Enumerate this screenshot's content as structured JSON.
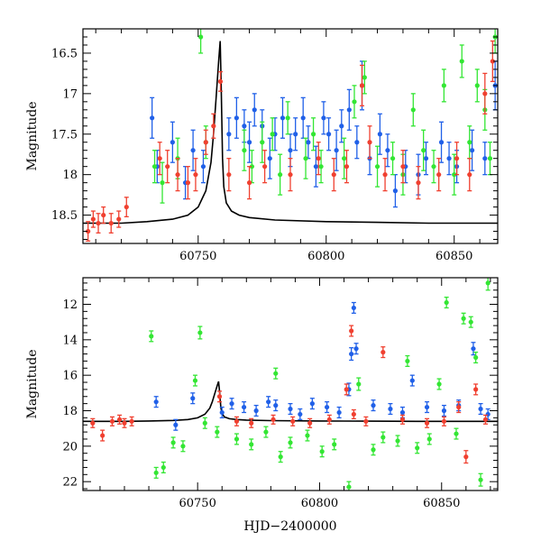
{
  "chart_data": [
    {
      "type": "scatter",
      "panel": "top",
      "ylabel": "Magnitude",
      "xlabel": "",
      "xlim": [
        60705,
        60867
      ],
      "ylim": [
        18.85,
        16.2
      ],
      "y_inverted": true,
      "xticks": [
        60750,
        60800,
        60850
      ],
      "xtick_labels": [
        "60750",
        "60800",
        "60850"
      ],
      "yticks": [
        16.5,
        17,
        17.5,
        18,
        18.5
      ],
      "ytick_labels": [
        "16.5",
        "17",
        "17.5",
        "18",
        "18.5"
      ],
      "model_line": {
        "color": "#000000",
        "x": [
          60705,
          60720,
          60730,
          60740,
          60746,
          60750,
          60753,
          60755,
          60756,
          60757,
          60758,
          60758.6,
          60759,
          60759.5,
          60760,
          60761,
          60763,
          60766,
          60770,
          60780,
          60800,
          60820,
          60840,
          60860,
          60867
        ],
        "y": [
          18.6,
          18.6,
          18.58,
          18.55,
          18.5,
          18.4,
          18.2,
          17.85,
          17.5,
          17.05,
          16.6,
          16.35,
          16.9,
          17.8,
          18.15,
          18.35,
          18.45,
          18.5,
          18.53,
          18.56,
          18.58,
          18.59,
          18.6,
          18.6,
          18.6
        ]
      },
      "series": [
        {
          "name": "",
          "color": "#2060e8",
          "x": [
            60732,
            60734,
            60740,
            60745,
            60748,
            60752,
            60762,
            60765,
            60768,
            60770,
            60772,
            60775,
            60778,
            60780,
            60783,
            60786,
            60788,
            60791,
            60793,
            60796,
            60799,
            60801,
            60804,
            60806,
            60809,
            60812,
            60814,
            60817,
            60821,
            60824,
            60827,
            60831,
            60836,
            60839,
            60845,
            60848,
            60851,
            60857,
            60862,
            60866
          ],
          "y": [
            17.3,
            17.9,
            17.6,
            18.1,
            17.7,
            17.9,
            17.5,
            17.3,
            17.4,
            17.6,
            17.2,
            17.4,
            17.8,
            17.5,
            17.3,
            17.7,
            17.5,
            17.3,
            17.6,
            17.9,
            17.3,
            17.5,
            17.7,
            17.4,
            17.2,
            17.6,
            16.9,
            17.8,
            17.5,
            17.7,
            18.2,
            17.9,
            18.0,
            17.8,
            17.6,
            17.8,
            17.9,
            17.7,
            17.8,
            16.9
          ],
          "err": [
            0.25,
            0.2,
            0.25,
            0.2,
            0.25,
            0.2,
            0.2,
            0.25,
            0.2,
            0.25,
            0.2,
            0.2,
            0.25,
            0.2,
            0.25,
            0.2,
            0.2,
            0.25,
            0.2,
            0.25,
            0.2,
            0.2,
            0.25,
            0.2,
            0.25,
            0.2,
            0.3,
            0.2,
            0.25,
            0.2,
            0.2,
            0.2,
            0.25,
            0.2,
            0.25,
            0.2,
            0.2,
            0.25,
            0.2,
            0.3
          ]
        },
        {
          "name": "",
          "color": "#33e633",
          "x": [
            60733,
            60736,
            60742,
            60751,
            60753,
            60768,
            60771,
            60775,
            60779,
            60782,
            60785,
            60792,
            60795,
            60798,
            60807,
            60811,
            60815,
            60820,
            60826,
            60830,
            60834,
            60838,
            60842,
            60846,
            60850,
            60853,
            60856,
            60859,
            60862,
            60864,
            60866
          ],
          "y": [
            17.9,
            18.1,
            17.8,
            16.3,
            17.6,
            17.7,
            17.9,
            17.6,
            17.5,
            18.0,
            17.3,
            17.8,
            17.5,
            17.9,
            17.8,
            17.1,
            16.8,
            17.9,
            17.8,
            18.0,
            17.2,
            17.7,
            17.9,
            16.9,
            18.0,
            16.6,
            17.6,
            16.9,
            17.2,
            17.8,
            16.3
          ],
          "err": [
            0.2,
            0.25,
            0.25,
            0.2,
            0.2,
            0.25,
            0.2,
            0.25,
            0.2,
            0.25,
            0.2,
            0.25,
            0.2,
            0.2,
            0.25,
            0.2,
            0.2,
            0.25,
            0.2,
            0.25,
            0.2,
            0.25,
            0.2,
            0.2,
            0.25,
            0.2,
            0.2,
            0.2,
            0.25,
            0.2,
            0.2
          ]
        },
        {
          "name": "",
          "color": "#f04030",
          "x": [
            60707,
            60709,
            60711,
            60713,
            60716,
            60719,
            60722,
            60735,
            60738,
            60742,
            60746,
            60749,
            60753,
            60756,
            60758.7,
            60762,
            60770,
            60776,
            60786,
            60797,
            60803,
            60808,
            60814,
            60817,
            60823,
            60830,
            60836,
            60844,
            60851,
            60856,
            60862,
            60865
          ],
          "y": [
            18.7,
            18.55,
            18.6,
            18.5,
            18.6,
            18.55,
            18.4,
            17.8,
            17.9,
            18.0,
            18.1,
            18.0,
            17.6,
            17.4,
            16.85,
            18.0,
            18.1,
            17.9,
            18.0,
            17.8,
            18.0,
            17.9,
            16.9,
            17.6,
            18.0,
            17.9,
            18.1,
            18.0,
            17.8,
            18.0,
            17.0,
            16.6
          ],
          "err": [
            0.12,
            0.1,
            0.12,
            0.1,
            0.12,
            0.1,
            0.12,
            0.2,
            0.2,
            0.2,
            0.2,
            0.2,
            0.15,
            0.15,
            0.12,
            0.2,
            0.2,
            0.2,
            0.2,
            0.2,
            0.2,
            0.2,
            0.25,
            0.2,
            0.2,
            0.2,
            0.2,
            0.2,
            0.2,
            0.2,
            0.25,
            0.25
          ]
        }
      ]
    },
    {
      "type": "scatter",
      "panel": "bottom",
      "ylabel": "Magnitude",
      "xlabel": "HJD−2400000",
      "xlim": [
        60703,
        60873
      ],
      "ylim": [
        22.5,
        10.5
      ],
      "y_inverted": true,
      "xticks": [
        60750,
        60800,
        60850
      ],
      "xtick_labels": [
        "60750",
        "60800",
        "60850"
      ],
      "yticks": [
        12,
        14,
        16,
        18,
        20,
        22
      ],
      "ytick_labels": [
        "12",
        "14",
        "16",
        "18",
        "20",
        "22"
      ],
      "model_line": {
        "color": "#000000",
        "x": [
          60703,
          60720,
          60730,
          60740,
          60746,
          60750,
          60753,
          60755,
          60756,
          60757,
          60758,
          60758.6,
          60759,
          60759.5,
          60760,
          60761,
          60763,
          60766,
          60770,
          60780,
          60800,
          60820,
          60840,
          60860,
          60873
        ],
        "y": [
          18.6,
          18.6,
          18.58,
          18.55,
          18.5,
          18.4,
          18.2,
          17.85,
          17.5,
          17.05,
          16.6,
          16.35,
          16.9,
          17.8,
          18.15,
          18.35,
          18.45,
          18.5,
          18.53,
          18.56,
          18.58,
          18.59,
          18.6,
          18.6,
          18.6
        ]
      },
      "series": [
        {
          "name": "",
          "color": "#2060e8",
          "x": [
            60733,
            60741,
            60748,
            60760,
            60764,
            60769,
            60774,
            60779,
            60782,
            60788,
            60792,
            60797,
            60803,
            60808,
            60812,
            60813,
            60814,
            60815,
            60822,
            60829,
            60834,
            60838,
            60844,
            60851,
            60857,
            60863,
            60866,
            60869
          ],
          "y": [
            17.5,
            18.8,
            17.3,
            18.1,
            17.6,
            17.8,
            18.0,
            17.5,
            17.7,
            17.9,
            18.2,
            17.6,
            17.8,
            18.1,
            16.8,
            14.8,
            12.2,
            14.5,
            17.7,
            17.9,
            18.1,
            16.3,
            17.8,
            18.0,
            17.7,
            14.5,
            17.9,
            18.2
          ],
          "err": [
            0.3,
            0.3,
            0.3,
            0.3,
            0.3,
            0.3,
            0.3,
            0.3,
            0.3,
            0.3,
            0.3,
            0.3,
            0.3,
            0.3,
            0.35,
            0.35,
            0.3,
            0.3,
            0.3,
            0.3,
            0.3,
            0.3,
            0.3,
            0.3,
            0.3,
            0.35,
            0.3,
            0.3
          ]
        },
        {
          "name": "",
          "color": "#33e633",
          "x": [
            60731,
            60733,
            60736,
            60740,
            60744,
            60749,
            60751,
            60753,
            60758,
            60766,
            60772,
            60778,
            60782,
            60784,
            60788,
            60795,
            60801,
            60806,
            60812,
            60816,
            60822,
            60826,
            60832,
            60836,
            60840,
            60845,
            60849,
            60852,
            60856,
            60859,
            60862,
            60864,
            60866,
            60869
          ],
          "y": [
            13.8,
            21.5,
            21.2,
            19.8,
            20.0,
            16.3,
            13.6,
            18.7,
            19.2,
            19.6,
            19.9,
            19.2,
            15.9,
            20.6,
            19.8,
            19.4,
            20.3,
            19.9,
            22.3,
            16.5,
            20.2,
            19.5,
            19.7,
            15.2,
            20.1,
            19.6,
            16.5,
            11.9,
            19.3,
            12.8,
            13.0,
            15.0,
            21.9,
            10.8
          ],
          "err": [
            0.3,
            0.3,
            0.3,
            0.3,
            0.3,
            0.3,
            0.35,
            0.3,
            0.3,
            0.3,
            0.3,
            0.3,
            0.3,
            0.3,
            0.3,
            0.3,
            0.3,
            0.3,
            0.3,
            0.35,
            0.3,
            0.3,
            0.3,
            0.3,
            0.3,
            0.3,
            0.3,
            0.3,
            0.3,
            0.3,
            0.3,
            0.3,
            0.35,
            0.4
          ]
        },
        {
          "name": "",
          "color": "#f04030",
          "x": [
            60707,
            60711,
            60715,
            60718,
            60720,
            60723,
            60759,
            60766,
            60772,
            60781,
            60789,
            60796,
            60804,
            60811,
            60813,
            60814,
            60819,
            60826,
            60834,
            60844,
            60851,
            60857,
            60860,
            60864,
            60868
          ],
          "y": [
            18.7,
            19.4,
            18.6,
            18.5,
            18.7,
            18.6,
            17.2,
            18.6,
            18.7,
            18.5,
            18.6,
            18.7,
            18.5,
            16.8,
            13.5,
            18.2,
            18.6,
            14.7,
            18.5,
            18.7,
            18.6,
            17.8,
            20.6,
            16.8,
            18.5
          ],
          "err": [
            0.25,
            0.3,
            0.25,
            0.25,
            0.25,
            0.25,
            0.3,
            0.25,
            0.25,
            0.25,
            0.25,
            0.25,
            0.25,
            0.3,
            0.3,
            0.25,
            0.25,
            0.3,
            0.25,
            0.25,
            0.25,
            0.3,
            0.35,
            0.3,
            0.25
          ]
        }
      ]
    }
  ]
}
